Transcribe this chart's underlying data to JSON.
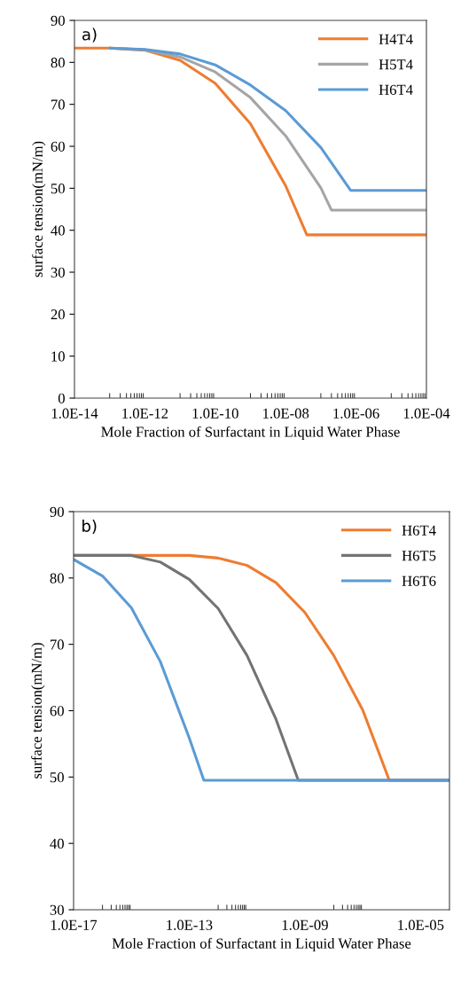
{
  "chart_data": [
    {
      "type": "line",
      "annotations": [
        "a)"
      ],
      "xlabel": "Mole Fraction of Surfactant in Liquid Water Phase",
      "ylabel": "surface tension(mN/m)",
      "log": "x",
      "legend": "top right",
      "grid": false,
      "marker": "none",
      "line_style": "solid",
      "xlim": [
        1e-14,
        0.0001
      ],
      "xticks": [
        {
          "value": 1e-14,
          "label": "1.0E-14"
        },
        {
          "value": 1e-12,
          "label": "1.0E-12"
        },
        {
          "value": 1e-10,
          "label": "1.0E-10"
        },
        {
          "value": 1e-08,
          "label": "1.0E-08"
        },
        {
          "value": 1e-06,
          "label": "1.0E-06"
        },
        {
          "value": 0.0001,
          "label": "1.0E-04"
        }
      ],
      "ylim": [
        0,
        90
      ],
      "yticks": [
        0,
        10,
        20,
        30,
        40,
        50,
        60,
        70,
        80,
        90
      ],
      "series": [
        {
          "name": "H4T4",
          "color": "#ed7d31",
          "x": [
            1e-14,
            1e-13,
            1e-12,
            1e-11,
            1e-10,
            1e-09,
            1e-08,
            4e-08,
            0.0001
          ],
          "values": [
            83.4,
            83.4,
            82.9,
            80.5,
            75,
            65.4,
            50.6,
            38.9,
            38.9
          ]
        },
        {
          "name": "H5T4",
          "color": "#a5a5a5",
          "x": [
            1e-13,
            1e-12,
            1e-11,
            1e-10,
            1e-09,
            1e-08,
            1e-07,
            2e-07,
            0.0001
          ],
          "values": [
            83.4,
            83,
            81.3,
            77.7,
            71.6,
            62.5,
            50.1,
            44.8,
            44.8
          ]
        },
        {
          "name": "H6T4",
          "color": "#5b9bd5",
          "x": [
            1e-13,
            1e-12,
            1e-11,
            1e-10,
            1e-09,
            1e-08,
            1e-07,
            7e-07,
            0.0001
          ],
          "values": [
            83.4,
            83.1,
            82,
            79.4,
            74.6,
            68.5,
            59.7,
            49.5,
            49.5
          ]
        }
      ]
    },
    {
      "type": "line",
      "annotations": [
        "b)"
      ],
      "xlabel": "Mole Fraction of Surfactant in Liquid Water Phase",
      "ylabel": "surface tension(mN/m)",
      "log": "x",
      "legend": "top right",
      "grid": false,
      "marker": "none",
      "line_style": "solid",
      "xlim": [
        1e-17,
        0.0001
      ],
      "xticks": [
        {
          "value": 1e-17,
          "label": "1.0E-17"
        },
        {
          "value": 1e-13,
          "label": "1.0E-13"
        },
        {
          "value": 1e-09,
          "label": "1.0E-09"
        },
        {
          "value": 1e-05,
          "label": "1.0E-05"
        }
      ],
      "ylim": [
        30,
        90
      ],
      "yticks": [
        30,
        40,
        50,
        60,
        70,
        80,
        90
      ],
      "series": [
        {
          "name": "H6T4",
          "color": "#ed7d31",
          "x": [
            1e-17,
            1e-13,
            1e-12,
            1e-11,
            1e-10,
            1e-09,
            1e-08,
            1e-07,
            8.3e-07,
            0.0001
          ],
          "values": [
            83.4,
            83.4,
            83,
            81.9,
            79.3,
            74.8,
            68.3,
            60.1,
            49.5,
            49.5
          ]
        },
        {
          "name": "H6T5",
          "color": "#737373",
          "x": [
            1e-17,
            1e-15,
            1e-14,
            1e-13,
            1e-12,
            1e-11,
            1e-10,
            5.9e-10,
            0.0001
          ],
          "values": [
            83.4,
            83.4,
            82.4,
            79.8,
            75.4,
            68.3,
            58.7,
            49.5,
            49.5
          ]
        },
        {
          "name": "H6T6",
          "color": "#5b9bd5",
          "x": [
            1e-17,
            1e-16,
            1e-15,
            1e-14,
            1e-13,
            3.2e-13,
            0.0001
          ],
          "values": [
            82.8,
            80.3,
            75.5,
            67.4,
            55.9,
            49.5,
            49.5
          ]
        }
      ]
    }
  ]
}
